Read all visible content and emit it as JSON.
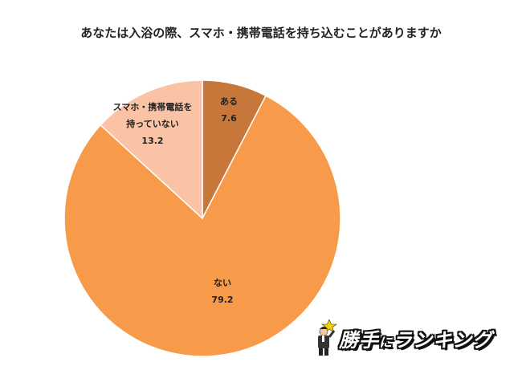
{
  "chart_data": {
    "type": "pie",
    "title": "あなたは入浴の際、スマホ・携帯電話を持ち込むことがありますか",
    "slices": [
      {
        "name": "ある",
        "value": 7.6,
        "color": "#c8773a",
        "label_lines": [
          "ある",
          "7.6"
        ]
      },
      {
        "name": "ない",
        "value": 79.2,
        "color": "#f79a4a",
        "label_lines": [
          "ない",
          "79.2"
        ]
      },
      {
        "name": "スマホ・携帯電話を持っていない",
        "value": 13.2,
        "color": "#fac3a6",
        "label_lines": [
          "スマホ・携帯電話を",
          "持っていない",
          "13.2"
        ]
      }
    ],
    "start_angle_deg": 0,
    "direction": "clockwise",
    "legend": "none"
  },
  "logo": {
    "text_main": "勝手",
    "text_small": "に",
    "text_tail": "ランキング",
    "colors": {
      "star": "#f5d000",
      "suit": "#333333"
    }
  }
}
